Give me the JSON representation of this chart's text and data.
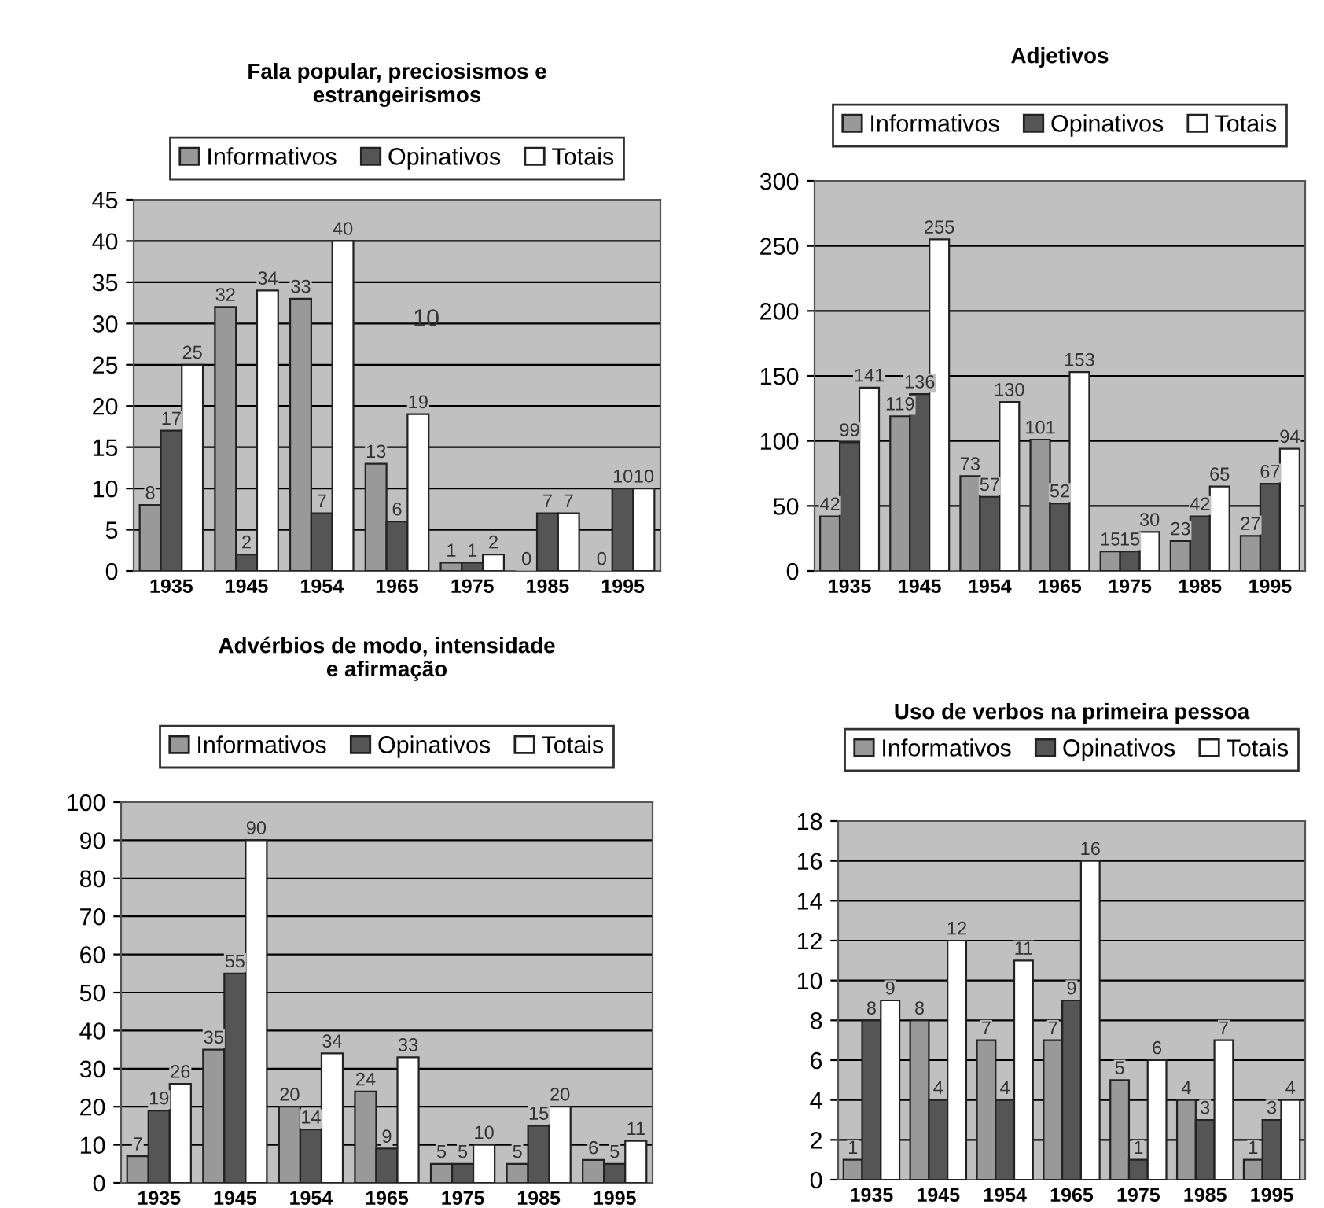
{
  "chart_data": [
    {
      "type": "bar",
      "title": "Fala popular, preciosismos e\nestrangeirismos",
      "categories": [
        "1935",
        "1945",
        "1954",
        "1965",
        "1975",
        "1985",
        "1995"
      ],
      "series": [
        {
          "name": "Informativos",
          "color": "#999999",
          "values": [
            8,
            32,
            33,
            13,
            1,
            0,
            0
          ]
        },
        {
          "name": "Opinativos",
          "color": "#555555",
          "values": [
            17,
            2,
            7,
            6,
            1,
            7,
            10
          ]
        },
        {
          "name": "Totais",
          "color": "#ffffff",
          "values": [
            25,
            34,
            40,
            19,
            2,
            7,
            10
          ]
        }
      ],
      "ylim": [
        0,
        45
      ],
      "yticks": [
        0,
        5,
        10,
        15,
        20,
        25,
        30,
        35,
        40,
        45
      ],
      "grid": "y",
      "legend": "top",
      "data_labels": true,
      "annotations": [
        "10"
      ]
    },
    {
      "type": "bar",
      "title": "Adjetivos",
      "categories": [
        "1935",
        "1945",
        "1954",
        "1965",
        "1975",
        "1985",
        "1995"
      ],
      "series": [
        {
          "name": "Informativos",
          "color": "#999999",
          "values": [
            42,
            119,
            73,
            101,
            15,
            23,
            27
          ]
        },
        {
          "name": "Opinativos",
          "color": "#555555",
          "values": [
            99,
            136,
            57,
            52,
            15,
            42,
            67
          ]
        },
        {
          "name": "Totais",
          "color": "#ffffff",
          "values": [
            141,
            255,
            130,
            153,
            30,
            65,
            94
          ]
        }
      ],
      "ylim": [
        0,
        300
      ],
      "yticks": [
        0,
        50,
        100,
        150,
        200,
        250,
        300
      ],
      "grid": "y",
      "legend": "top",
      "data_labels": true
    },
    {
      "type": "bar",
      "title": "Advérbios de modo, intensidade\ne afirmação",
      "categories": [
        "1935",
        "1945",
        "1954",
        "1965",
        "1975",
        "1985",
        "1995"
      ],
      "series": [
        {
          "name": "Informativos",
          "color": "#999999",
          "values": [
            7,
            35,
            20,
            24,
            5,
            5,
            6
          ]
        },
        {
          "name": "Opinativos",
          "color": "#555555",
          "values": [
            19,
            55,
            14,
            9,
            5,
            15,
            5
          ]
        },
        {
          "name": "Totais",
          "color": "#ffffff",
          "values": [
            26,
            90,
            34,
            33,
            10,
            20,
            11
          ]
        }
      ],
      "ylim": [
        0,
        100
      ],
      "yticks": [
        0,
        10,
        20,
        30,
        40,
        50,
        60,
        70,
        80,
        90,
        100
      ],
      "grid": "y",
      "legend": "top",
      "data_labels": true
    },
    {
      "type": "bar",
      "title": "Uso de verbos na primeira pessoa",
      "categories": [
        "1935",
        "1945",
        "1954",
        "1965",
        "1975",
        "1985",
        "1995"
      ],
      "series": [
        {
          "name": "Informativos",
          "color": "#999999",
          "values": [
            1,
            8,
            7,
            7,
            5,
            4,
            1
          ]
        },
        {
          "name": "Opinativos",
          "color": "#555555",
          "values": [
            8,
            4,
            4,
            9,
            1,
            3,
            3
          ]
        },
        {
          "name": "Totais",
          "color": "#ffffff",
          "values": [
            9,
            12,
            11,
            16,
            6,
            7,
            4
          ]
        }
      ],
      "ylim": [
        0,
        18
      ],
      "yticks": [
        0,
        2,
        4,
        6,
        8,
        10,
        12,
        14,
        16,
        18
      ],
      "grid": "y",
      "legend": "top",
      "data_labels": true
    }
  ]
}
